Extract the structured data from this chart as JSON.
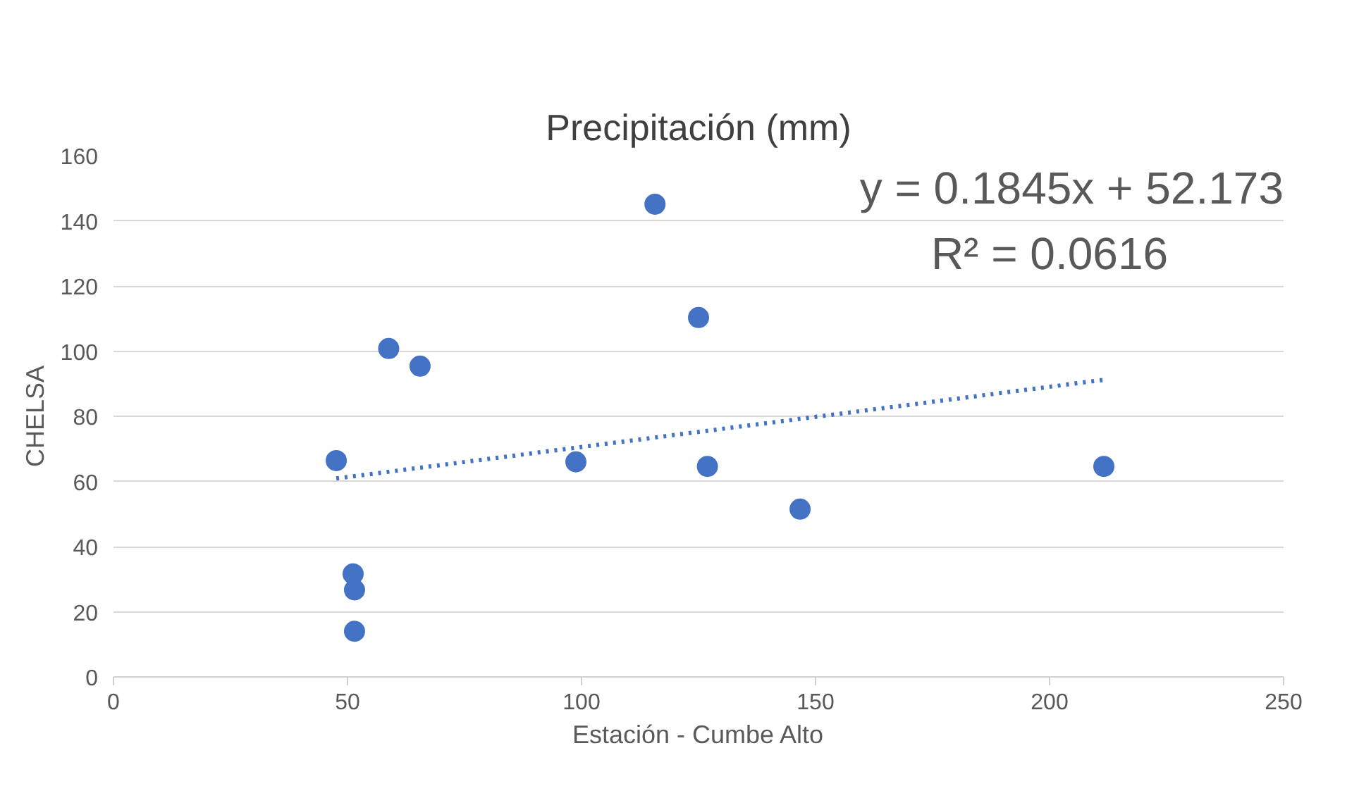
{
  "chart_data": {
    "type": "scatter",
    "title": "Precipitación (mm)",
    "xlabel": "Estación - Cumbe Alto",
    "ylabel": "CHELSA",
    "xlim": [
      0,
      250
    ],
    "xticks": [
      0,
      50,
      100,
      150,
      200,
      250
    ],
    "ylim": [
      0,
      160
    ],
    "yticks": [
      0,
      20,
      40,
      60,
      80,
      100,
      120,
      140,
      160
    ],
    "grid": "y",
    "marker": "circle",
    "series": [
      {
        "color": "#4472c4",
        "x": [
          47.6,
          51.2,
          51.5,
          51.5,
          58.8,
          65.5,
          98.8,
          115.7,
          125.0,
          126.9,
          146.7,
          211.6
        ],
        "values": [
          66.4,
          31.6,
          26.7,
          14.0,
          100.8,
          95.4,
          66.0,
          145.1,
          110.3,
          64.6,
          51.5,
          64.6
        ]
      },
      {
        "type": "line",
        "color": "#4472c4",
        "marker": "none",
        "line_style": "dotted",
        "x": [
          47.6,
          211.6
        ],
        "values": [
          60.9,
          91.2
        ]
      }
    ],
    "annotations": [
      "y = 0.1845x + 52.173",
      "R² = 0.0616"
    ]
  }
}
